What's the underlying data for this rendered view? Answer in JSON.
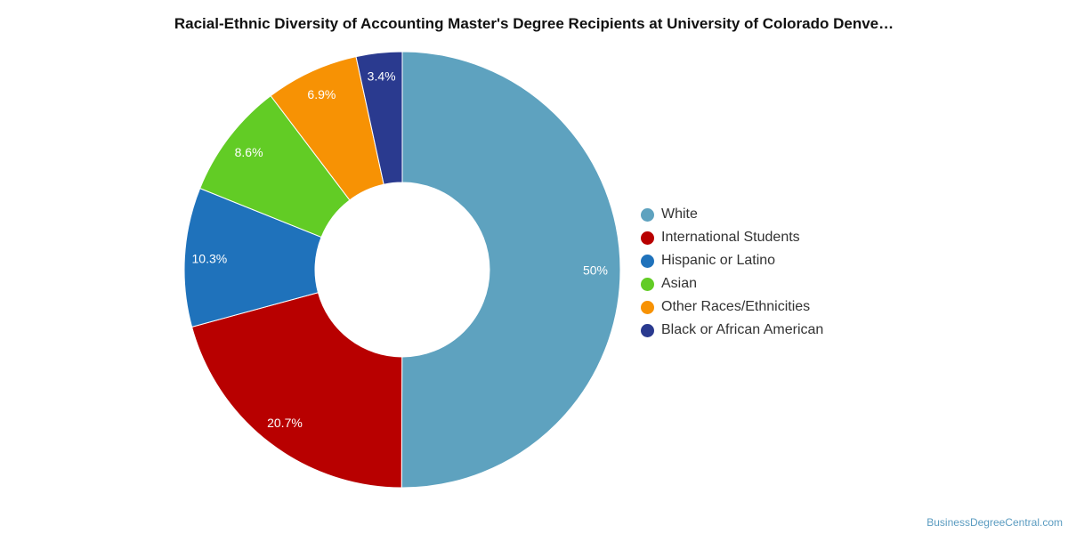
{
  "chart_data": {
    "type": "pie",
    "variant": "donut",
    "title": "Racial-Ethnic Diversity of Accounting Master's Degree Recipients at University of Colorado Denve…",
    "legend_position": "right",
    "slices": [
      {
        "name": "White",
        "value": 50,
        "label": "50%",
        "color": "#5ea2bf"
      },
      {
        "name": "International Students",
        "value": 20.7,
        "label": "20.7%",
        "color": "#b80000"
      },
      {
        "name": "Hispanic or Latino",
        "value": 10.3,
        "label": "10.3%",
        "color": "#1f72bb"
      },
      {
        "name": "Asian",
        "value": 8.6,
        "label": "8.6%",
        "color": "#62cc25"
      },
      {
        "name": "Other Races/Ethnicities",
        "value": 6.9,
        "label": "6.9%",
        "color": "#f79204"
      },
      {
        "name": "Black or African American",
        "value": 3.4,
        "label": "3.4%",
        "color": "#2a3a8f"
      }
    ]
  },
  "credit": "BusinessDegreeCentral.com"
}
